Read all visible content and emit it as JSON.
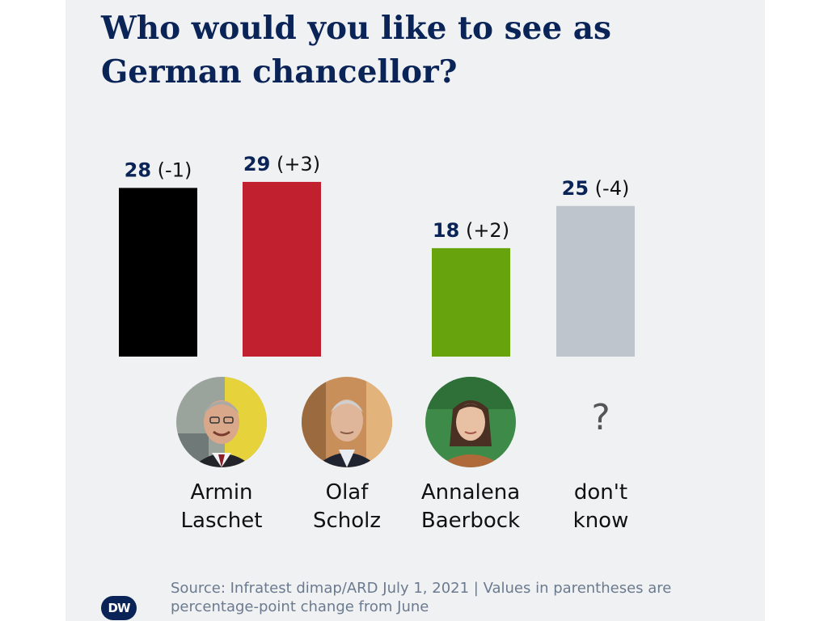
{
  "title": "Who would you like to see as German chancellor?",
  "source": "Source: Infratest dimap/ARD July 1, 2021 | Values in parentheses are percentage-point change from June",
  "logo_text": "DW",
  "chart_data": {
    "type": "bar",
    "title": "Who would you like to see as German chancellor?",
    "categories": [
      "Armin Laschet",
      "Olaf Scholz",
      "Annalena Baerbock",
      "don't know"
    ],
    "values": [
      28,
      29,
      18,
      25
    ],
    "changes": [
      "-1",
      "+3",
      "+2",
      "-4"
    ],
    "value_labels": [
      "28",
      "29",
      "18",
      "25"
    ],
    "change_labels": [
      "(-1)",
      "(+3)",
      "(+2)",
      "(-4)"
    ],
    "colors": [
      "#000000",
      "#c1202f",
      "#66a30c",
      "#bfc5cd"
    ],
    "ylim": [
      0,
      29
    ],
    "grid": false,
    "legend": "none"
  },
  "candidates": [
    {
      "line1": "Armin",
      "line2": "Laschet",
      "icon": "portrait-armin-laschet"
    },
    {
      "line1": "Olaf",
      "line2": "Scholz",
      "icon": "portrait-olaf-scholz"
    },
    {
      "line1": "Annalena",
      "line2": "Baerbock",
      "icon": "portrait-annalena-baerbock"
    },
    {
      "line1": "don't",
      "line2": "know",
      "icon": "question-mark",
      "glyph": "?"
    }
  ]
}
